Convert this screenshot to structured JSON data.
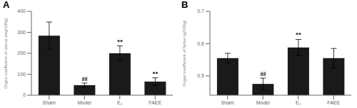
{
  "chart_data": [
    {
      "type": "bar",
      "title": "A",
      "categories": [
        "Sham",
        "Model",
        "E₂",
        "FAEE"
      ],
      "values": [
        284,
        48,
        200,
        65
      ],
      "errors": [
        65,
        10,
        35,
        18
      ],
      "annotations": [
        null,
        "##",
        "**",
        "**"
      ],
      "ylabel": "Organ coefficient of uterus (mg/100g)",
      "ylim": [
        0,
        400
      ],
      "yticks": [
        0,
        100,
        200,
        300,
        400
      ],
      "color": "#1a1a1a",
      "grid": false
    },
    {
      "type": "bar",
      "title": "B",
      "categories": [
        "Sham",
        "Model",
        "E₂",
        "FAEE"
      ],
      "values": [
        0.555,
        0.475,
        0.588,
        0.555
      ],
      "errors": [
        0.015,
        0.018,
        0.025,
        0.03
      ],
      "annotations": [
        null,
        "##",
        "**",
        null
      ],
      "ylabel": "Organ coefficient of femur (g/100g)",
      "ylim": [
        0.44,
        0.7
      ],
      "yticks": [
        0.5,
        0.6,
        0.7
      ],
      "color": "#1a1a1a",
      "grid": false
    }
  ]
}
